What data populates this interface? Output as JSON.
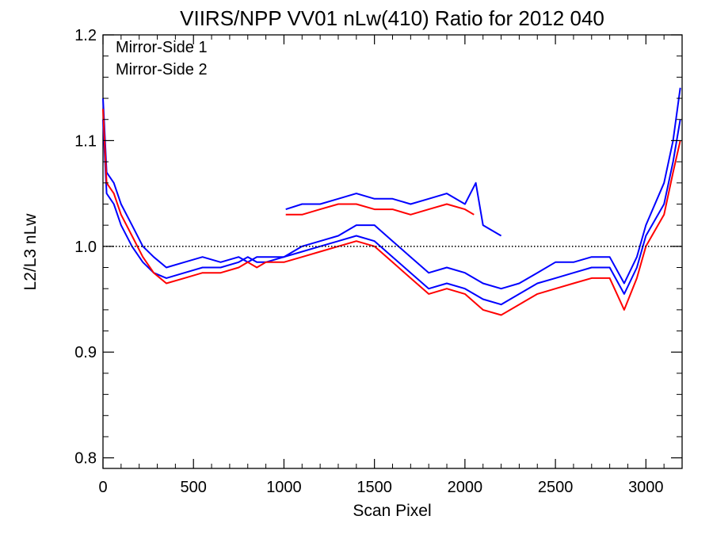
{
  "chart_data": {
    "type": "line",
    "title": "VIIRS/NPP VV01 nLw(410) Ratio for 2012 040",
    "xlabel": "Scan Pixel",
    "ylabel": "L2/L3 nLw",
    "xlim": [
      0,
      3200
    ],
    "ylim": [
      0.79,
      1.2
    ],
    "x_ticks": [
      0,
      500,
      1000,
      1500,
      2000,
      2500,
      3000
    ],
    "x_tick_labels": [
      "0",
      "500",
      "1000",
      "1500",
      "2000",
      "2500",
      "3000"
    ],
    "y_ticks": [
      0.8,
      0.9,
      1.0,
      1.1,
      1.2
    ],
    "y_tick_labels": [
      "0.8",
      "0.9",
      "1.0",
      "1.1",
      "1.2"
    ],
    "grid": false,
    "legend_position": "top-left",
    "reference_line": {
      "y": 1.0,
      "style": "dotted",
      "color": "#000000"
    },
    "colors": {
      "mirror_side_1": "#0000ff",
      "mirror_side_2": "#ff0000"
    },
    "legend": [
      {
        "label": "Mirror-Side 1",
        "color": "#0000ff"
      },
      {
        "label": "Mirror-Side 2",
        "color": "#ff0000"
      }
    ],
    "series": [
      {
        "name": "Mirror-Side 1",
        "color": "#0000ff",
        "x": [
          0,
          20,
          60,
          100,
          160,
          220,
          280,
          350,
          450,
          550,
          650,
          750,
          800,
          850,
          900,
          1000,
          1100,
          1200,
          1300,
          1400,
          1500,
          1600,
          1700,
          1800,
          1900,
          2000,
          2100,
          2200,
          2300,
          2400,
          2500,
          2600,
          2700,
          2800,
          2880,
          2950,
          3000,
          3100,
          3150,
          3190
        ],
        "y": [
          1.14,
          1.07,
          1.06,
          1.04,
          1.02,
          1.0,
          0.99,
          0.98,
          0.985,
          0.99,
          0.985,
          0.99,
          0.985,
          0.99,
          0.99,
          0.99,
          1.0,
          1.005,
          1.01,
          1.02,
          1.02,
          1.005,
          0.99,
          0.975,
          0.98,
          0.975,
          0.965,
          0.96,
          0.965,
          0.975,
          0.985,
          0.985,
          0.99,
          0.99,
          0.965,
          0.99,
          1.02,
          1.06,
          1.1,
          1.15
        ]
      },
      {
        "name": "Mirror-Side 1",
        "color": "#0000ff",
        "x": [
          0,
          20,
          60,
          100,
          160,
          220,
          280,
          350,
          450,
          550,
          650,
          750,
          800,
          850,
          900,
          1000,
          1100,
          1200,
          1300,
          1400,
          1500,
          1600,
          1700,
          1800,
          1900,
          2000,
          2100,
          2200,
          2300,
          2400,
          2500,
          2600,
          2700,
          2800,
          2880,
          2950,
          3000,
          3100,
          3150,
          3190
        ],
        "y": [
          1.12,
          1.05,
          1.04,
          1.02,
          1.0,
          0.985,
          0.975,
          0.97,
          0.975,
          0.98,
          0.98,
          0.985,
          0.99,
          0.985,
          0.985,
          0.99,
          0.995,
          1.0,
          1.005,
          1.01,
          1.005,
          0.99,
          0.975,
          0.96,
          0.965,
          0.96,
          0.95,
          0.945,
          0.955,
          0.965,
          0.97,
          0.975,
          0.98,
          0.98,
          0.955,
          0.98,
          1.01,
          1.04,
          1.08,
          1.12
        ]
      },
      {
        "name": "Mirror-Side 1",
        "color": "#0000ff",
        "x": [
          1010,
          1100,
          1200,
          1300,
          1400,
          1500,
          1600,
          1700,
          1800,
          1900,
          2000,
          2060,
          2100,
          2200
        ],
        "y": [
          1.035,
          1.04,
          1.04,
          1.045,
          1.05,
          1.045,
          1.045,
          1.04,
          1.045,
          1.05,
          1.04,
          1.06,
          1.02,
          1.01
        ]
      },
      {
        "name": "Mirror-Side 2",
        "color": "#ff0000",
        "x": [
          0,
          20,
          60,
          100,
          160,
          220,
          280,
          350,
          450,
          550,
          650,
          750,
          800,
          850,
          900,
          1000,
          1100,
          1200,
          1300,
          1400,
          1500,
          1600,
          1700,
          1800,
          1900,
          2000,
          2100,
          2200,
          2300,
          2400,
          2500,
          2600,
          2700,
          2800,
          2880,
          2950,
          3000,
          3100,
          3150,
          3190
        ],
        "y": [
          1.13,
          1.06,
          1.05,
          1.03,
          1.01,
          0.99,
          0.975,
          0.965,
          0.97,
          0.975,
          0.975,
          0.98,
          0.985,
          0.98,
          0.985,
          0.985,
          0.99,
          0.995,
          1.0,
          1.005,
          1.0,
          0.985,
          0.97,
          0.955,
          0.96,
          0.955,
          0.94,
          0.935,
          0.945,
          0.955,
          0.96,
          0.965,
          0.97,
          0.97,
          0.94,
          0.97,
          1.0,
          1.03,
          1.07,
          1.1
        ]
      },
      {
        "name": "Mirror-Side 2",
        "color": "#ff0000",
        "x": [
          1010,
          1100,
          1200,
          1300,
          1400,
          1500,
          1600,
          1700,
          1800,
          1900,
          2000,
          2050
        ],
        "y": [
          1.03,
          1.03,
          1.035,
          1.04,
          1.04,
          1.035,
          1.035,
          1.03,
          1.035,
          1.04,
          1.035,
          1.03
        ]
      }
    ]
  }
}
